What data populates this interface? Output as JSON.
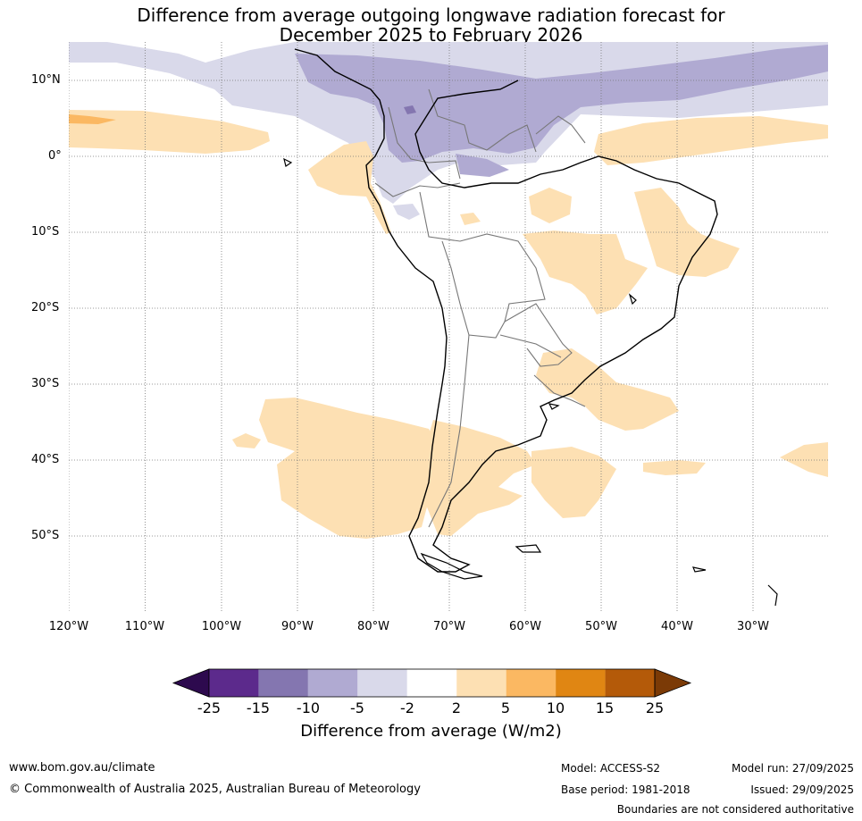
{
  "title_line1": "Difference from average outgoing longwave radiation forecast for",
  "title_line2": "December 2025 to February 2026",
  "lat_labels": [
    "10°N",
    "0°",
    "10°S",
    "20°S",
    "30°S",
    "40°S",
    "50°S"
  ],
  "lon_labels": [
    "120°W",
    "110°W",
    "100°W",
    "90°W",
    "80°W",
    "70°W",
    "60°W",
    "50°W",
    "40°W",
    "30°W"
  ],
  "colorbar": {
    "ticks": [
      "-25",
      "-15",
      "-10",
      "-5",
      "-2",
      "2",
      "5",
      "10",
      "15",
      "25"
    ],
    "colors": [
      "#2d0a4e",
      "#5c2a8c",
      "#8476b0",
      "#b0aad2",
      "#d9d9ea",
      "#ffffff",
      "#fde0b3",
      "#fbb862",
      "#e08613",
      "#b45a09",
      "#7b3a06"
    ],
    "label": "Difference from average (W/m2)"
  },
  "footer": {
    "url": "www.bom.gov.au/climate",
    "copyright": "© Commonwealth of Australia 2025, Australian Bureau of Meteorology",
    "model": "Model: ACCESS-S2",
    "base_period": "Base period: 1981-2018",
    "model_run": "Model run: 27/09/2025",
    "issued": "Issued: 29/09/2025",
    "disclaimer": "Boundaries are not considered authoritative"
  }
}
